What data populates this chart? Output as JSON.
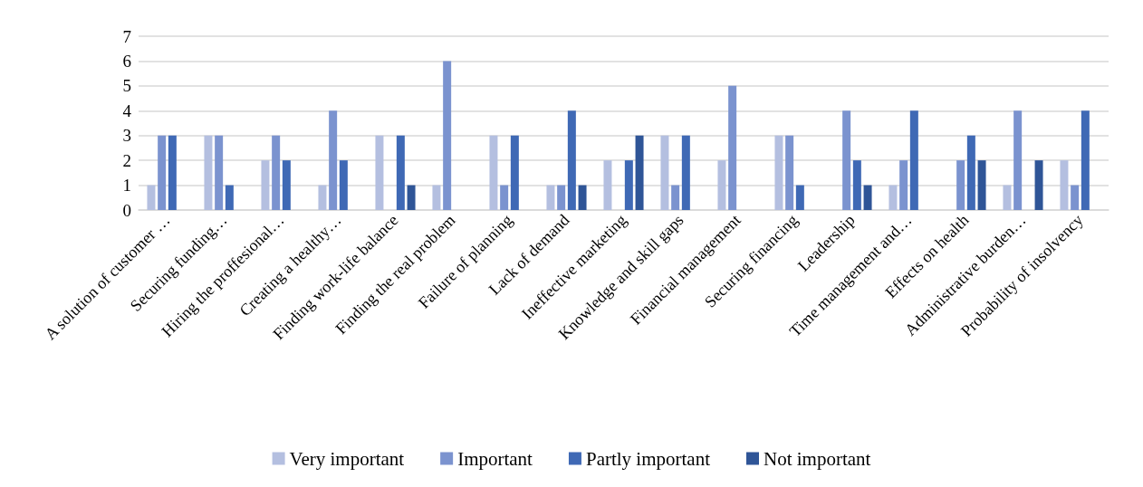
{
  "chart_data": {
    "type": "bar",
    "categories": [
      "A solution of customer …",
      "Securing funding…",
      "Hiring the proffesional…",
      "Creating a healthy…",
      "Finding work-life balance",
      "Finding the real problem",
      "Failure of planning",
      "Lack of demand",
      "Ineffective marketing",
      "Knowledge and skill gaps",
      "Financial management",
      "Securing financing",
      "Leadership",
      "Time management and…",
      "Effects on health",
      "Administrative burden…",
      "Probability of insolvency"
    ],
    "series": [
      {
        "name": "Very important",
        "color": "#b4bfe0",
        "values": [
          1,
          3,
          2,
          1,
          3,
          1,
          3,
          1,
          2,
          3,
          2,
          3,
          0,
          1,
          0,
          1,
          2
        ]
      },
      {
        "name": "Important",
        "color": "#7b93cf",
        "values": [
          3,
          3,
          3,
          4,
          0,
          6,
          1,
          1,
          0,
          1,
          5,
          3,
          4,
          2,
          2,
          4,
          1
        ]
      },
      {
        "name": "Partly important",
        "color": "#3f69b5",
        "values": [
          3,
          1,
          2,
          2,
          3,
          0,
          3,
          4,
          2,
          3,
          0,
          1,
          2,
          4,
          3,
          0,
          4
        ]
      },
      {
        "name": "Not important",
        "color": "#2f5597",
        "values": [
          0,
          0,
          0,
          0,
          1,
          0,
          0,
          1,
          3,
          0,
          0,
          0,
          1,
          0,
          2,
          2,
          0
        ]
      }
    ],
    "ylim": [
      0,
      7
    ],
    "yticks": [
      0,
      1,
      2,
      3,
      4,
      5,
      6,
      7
    ],
    "grid": "y",
    "legend": "bottom"
  }
}
